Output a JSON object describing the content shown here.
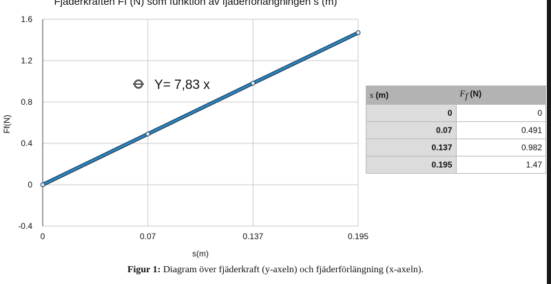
{
  "chart_data": {
    "type": "line",
    "title": "Fjäderkraften Ff (N) som funktion av fjäderförlängningen s (m)",
    "xlabel": "s(m)",
    "ylabel": "Ff(N)",
    "x_categories": [
      "0",
      "0.07",
      "0.137",
      "0.195"
    ],
    "ylim": [
      -0.4,
      1.6
    ],
    "yticks": [
      "1.6",
      "1.2",
      "0.8",
      "0.4",
      "0",
      "-0.4"
    ],
    "grid": true,
    "series": [
      {
        "x": [
          0,
          0.07,
          0.137,
          0.195
        ],
        "values": [
          0,
          0.491,
          0.982,
          1.47
        ],
        "color": "#2e86c1"
      }
    ],
    "annotation": "Y= 7,83 x"
  },
  "table": {
    "header_s_var": "s",
    "header_s_unit": "(m)",
    "header_f_var": "F",
    "header_f_sub": "f",
    "header_f_unit": "(N)",
    "rows": [
      {
        "s": "0",
        "f": "0"
      },
      {
        "s": "0.07",
        "f": "0.491"
      },
      {
        "s": "0.137",
        "f": "0.982"
      },
      {
        "s": "0.195",
        "f": "1.47"
      }
    ]
  },
  "caption": {
    "label": "Figur 1:",
    "text": "Diagram över fjäderkraft (y-axeln) och fjäderförlängning (x-axeln)."
  }
}
